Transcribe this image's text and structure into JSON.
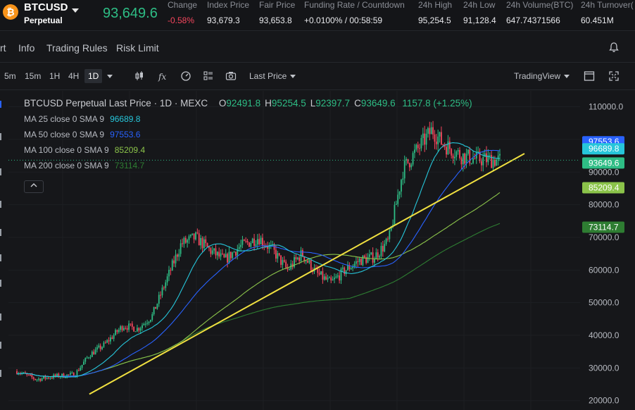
{
  "header": {
    "coin_letter": "₿",
    "symbol": "BTCUSD",
    "symbol_sub": "Perpetual",
    "last_price": "93,649.6",
    "stats": [
      {
        "label": "Change",
        "value": "-0.58%",
        "color": "red",
        "left": 238
      },
      {
        "label": "Index Price",
        "value": "93,679.3",
        "color": "",
        "left": 294
      },
      {
        "label": "Fair Price",
        "value": "93,653.8",
        "color": "",
        "left": 368
      },
      {
        "label": "Funding Rate / Countdown",
        "value": "+0.0100% / 00:58:59",
        "color": "",
        "left": 432
      },
      {
        "label": "24h High",
        "value": "95,254.5",
        "color": "",
        "left": 594
      },
      {
        "label": "24h Low",
        "value": "91,128.4",
        "color": "",
        "left": 658
      },
      {
        "label": "24h Volume(BTC)",
        "value": "647.74371566",
        "color": "",
        "left": 719
      },
      {
        "label": "24h Turnover(",
        "value": "60.451M",
        "color": "",
        "left": 825
      }
    ]
  },
  "tabs": [
    "rt",
    "Info",
    "Trading Rules",
    "Risk Limit"
  ],
  "toolbar": {
    "timeframes": [
      "5m",
      "15m",
      "1H",
      "4H",
      "1D"
    ],
    "active_timeframe": "1D",
    "price_type": "Last Price",
    "view_mode": "TradingView"
  },
  "legend": {
    "title": "BTCUSD Perpetual Last Price · 1D · MEXC",
    "ohlc": [
      {
        "k": "O",
        "v": "92491.8"
      },
      {
        "k": "H",
        "v": "95254.5"
      },
      {
        "k": "L",
        "v": "92397.7"
      },
      {
        "k": "C",
        "v": "93649.6"
      }
    ],
    "change": "1157.8 (+1.25%)",
    "mas": [
      {
        "label": "MA 25 close 0 SMA 9",
        "value": "96689.8",
        "color": "#26c6da"
      },
      {
        "label": "MA 50 close 0 SMA 9",
        "value": "97553.6",
        "color": "#2962ff"
      },
      {
        "label": "MA 100 close 0 SMA 9",
        "value": "85209.4",
        "color": "#8bc34a"
      },
      {
        "label": "MA 200 close 0 SMA 9",
        "value": "73114.7",
        "color": "#2e7d32"
      }
    ],
    "collapse_icon": "chevron-up-icon"
  },
  "chart_data": {
    "type": "candlestick",
    "title": "BTCUSD Perpetual Last Price · 1D · MEXC",
    "y_axis_ticks": [
      "110000.0",
      "100000.0",
      "90000.0",
      "80000.0",
      "70000.0",
      "60000.0",
      "50000.0",
      "40000.0",
      "30000.0",
      "20000.0"
    ],
    "y_tick_values": [
      110000,
      100000,
      90000,
      80000,
      70000,
      60000,
      50000,
      40000,
      30000,
      20000
    ],
    "ylim": [
      18000,
      114000
    ],
    "price_tags": [
      {
        "value": 97553.6,
        "text": "97553.6",
        "color": "#2962ff"
      },
      {
        "value": 96689.8,
        "text": "96689.8",
        "color": "#26c6da"
      },
      {
        "value": 93649.6,
        "text": "93649.6",
        "color": "#2ebd85"
      },
      {
        "value": 85209.4,
        "text": "85209.4",
        "color": "#8bc34a"
      },
      {
        "value": 73114.7,
        "text": "73114.7",
        "color": "#2e7d32"
      }
    ],
    "trendline": {
      "start": {
        "bar": 0.15,
        "value": 22000
      },
      "end": {
        "bar": 1.0,
        "value": 91500
      },
      "color": "#f0e040"
    },
    "price_path": [
      {
        "t": 0.0,
        "v": 29000
      },
      {
        "t": 0.04,
        "v": 26500
      },
      {
        "t": 0.08,
        "v": 27500
      },
      {
        "t": 0.12,
        "v": 28000
      },
      {
        "t": 0.15,
        "v": 34000
      },
      {
        "t": 0.18,
        "v": 37000
      },
      {
        "t": 0.22,
        "v": 43000
      },
      {
        "t": 0.25,
        "v": 42000
      },
      {
        "t": 0.28,
        "v": 46000
      },
      {
        "t": 0.31,
        "v": 57000
      },
      {
        "t": 0.34,
        "v": 68000
      },
      {
        "t": 0.37,
        "v": 70000
      },
      {
        "t": 0.4,
        "v": 66000
      },
      {
        "t": 0.43,
        "v": 63000
      },
      {
        "t": 0.46,
        "v": 67000
      },
      {
        "t": 0.5,
        "v": 70000
      },
      {
        "t": 0.53,
        "v": 66000
      },
      {
        "t": 0.56,
        "v": 60000
      },
      {
        "t": 0.59,
        "v": 65000
      },
      {
        "t": 0.62,
        "v": 59000
      },
      {
        "t": 0.65,
        "v": 56000
      },
      {
        "t": 0.68,
        "v": 60000
      },
      {
        "t": 0.71,
        "v": 63000
      },
      {
        "t": 0.74,
        "v": 64000
      },
      {
        "t": 0.77,
        "v": 69000
      },
      {
        "t": 0.8,
        "v": 91000
      },
      {
        "t": 0.83,
        "v": 97000
      },
      {
        "t": 0.86,
        "v": 103000
      },
      {
        "t": 0.88,
        "v": 99000
      },
      {
        "t": 0.9,
        "v": 97000
      },
      {
        "t": 0.92,
        "v": 95000
      },
      {
        "t": 0.95,
        "v": 94000
      },
      {
        "t": 1.0,
        "v": 93650
      }
    ]
  }
}
